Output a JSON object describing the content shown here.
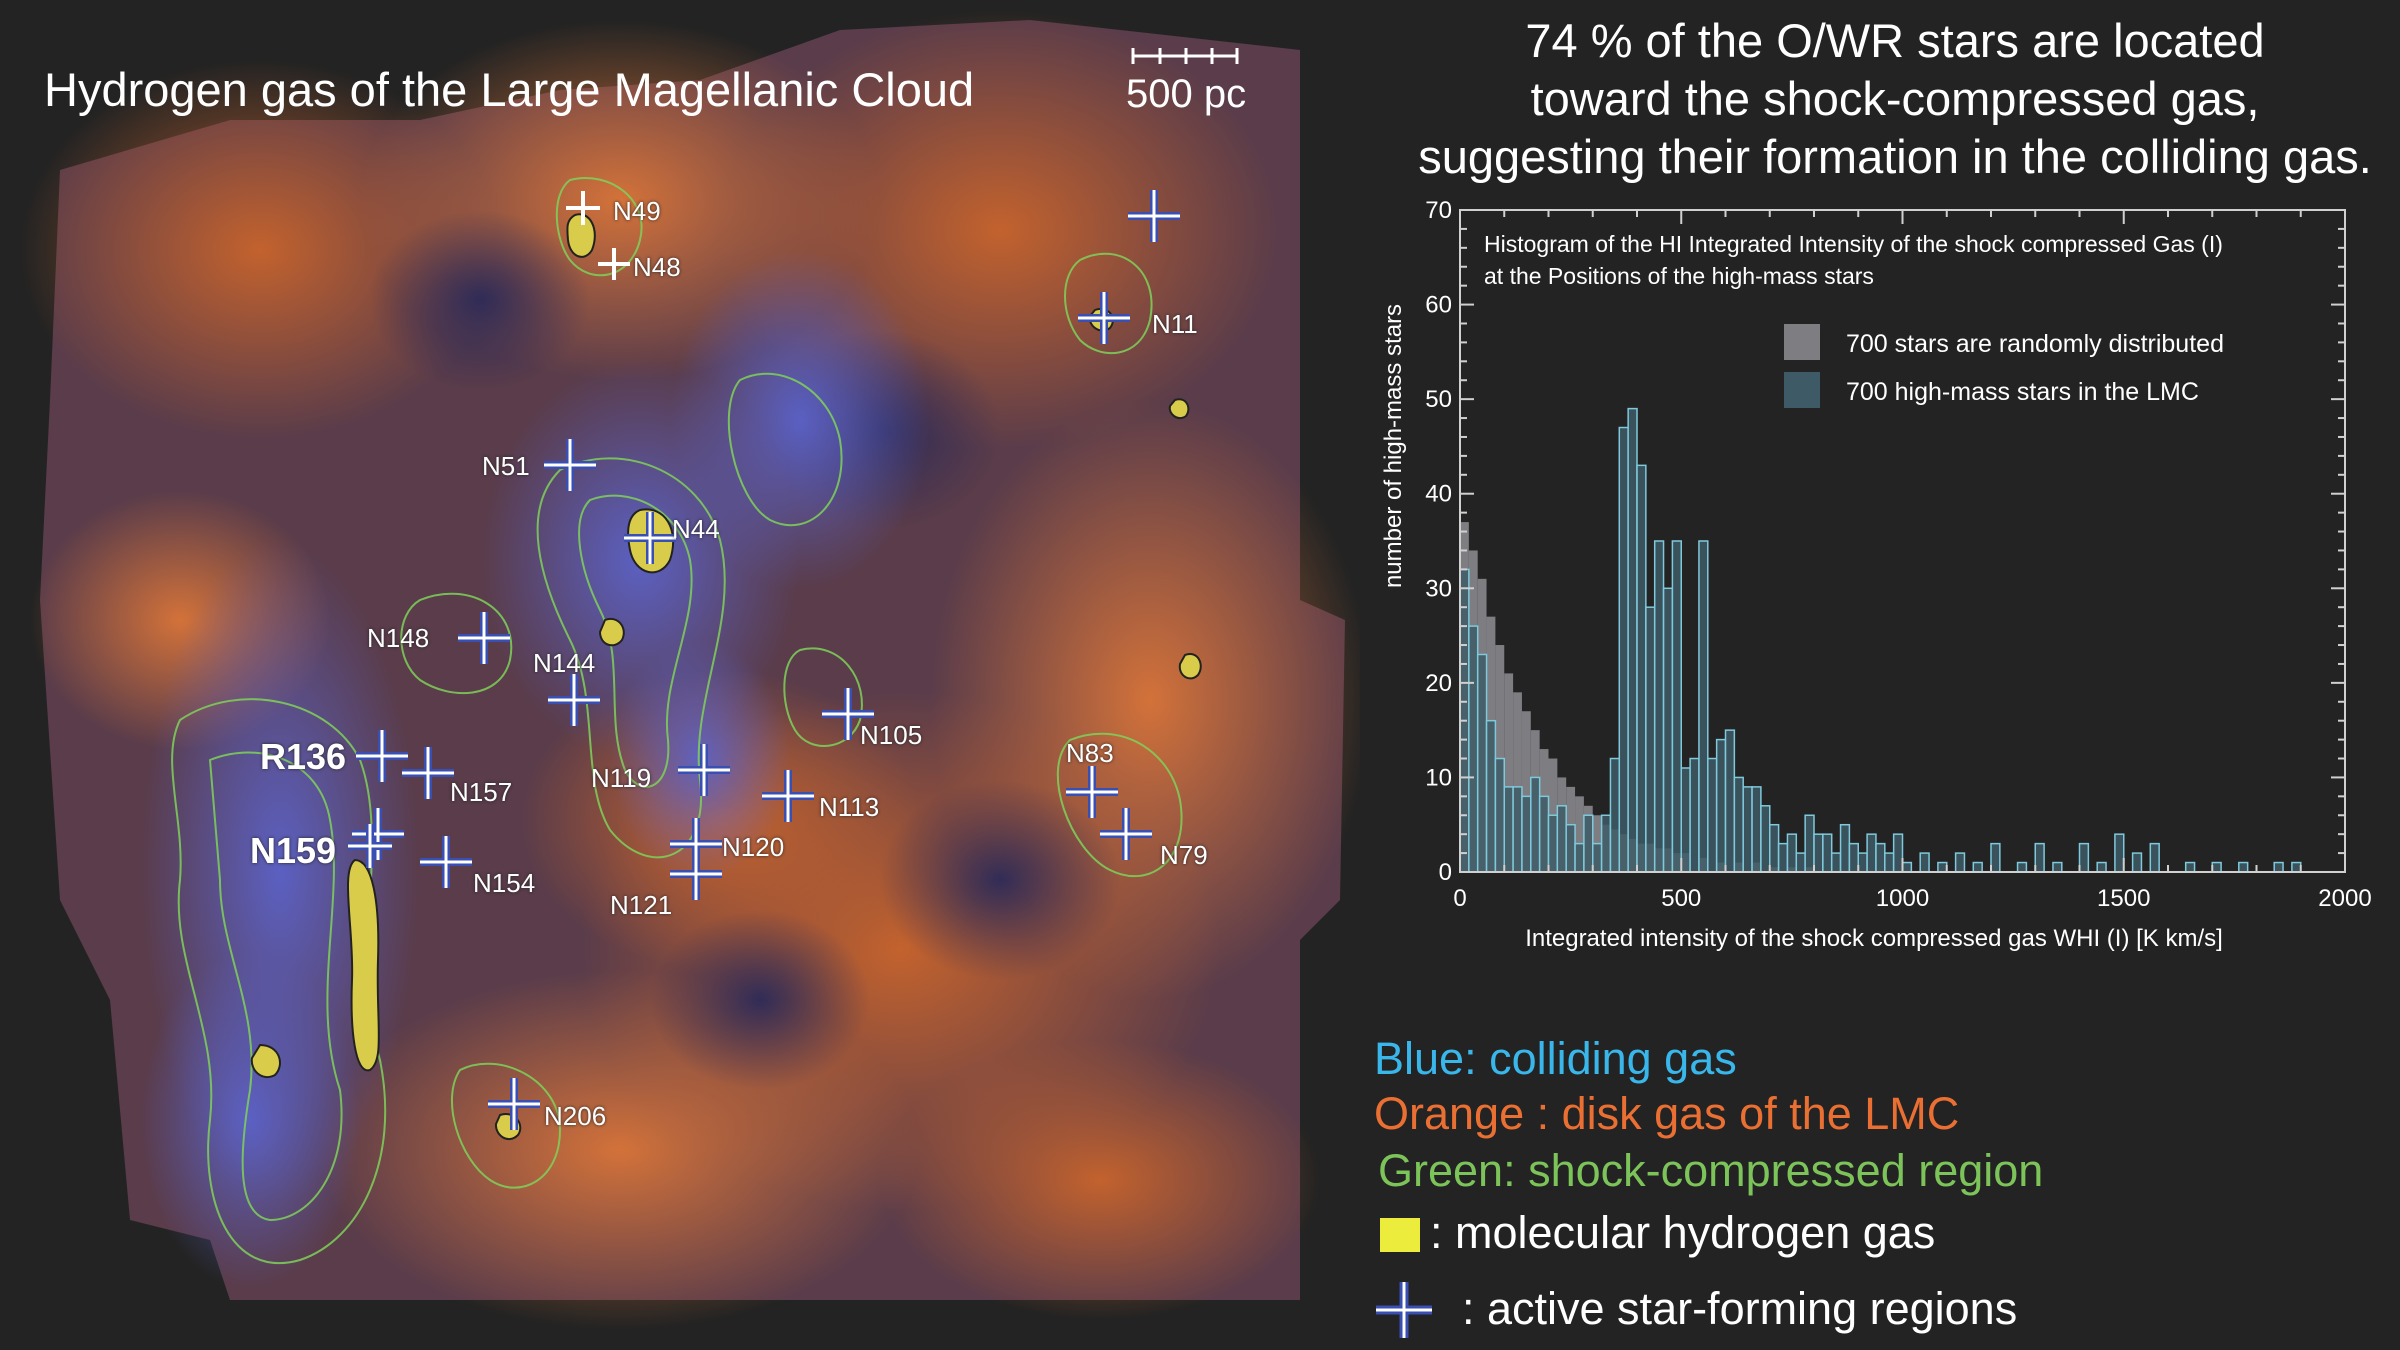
{
  "map": {
    "title": "Hydrogen gas of the Large Magellanic Cloud",
    "scale_label": "500 pc",
    "regions": [
      {
        "label": "N49",
        "big": false
      },
      {
        "label": "N48",
        "big": false
      },
      {
        "label": "N11",
        "big": false
      },
      {
        "label": "N51",
        "big": false
      },
      {
        "label": "N44",
        "big": false
      },
      {
        "label": "N148",
        "big": false
      },
      {
        "label": "N144",
        "big": false
      },
      {
        "label": "N105",
        "big": false
      },
      {
        "label": "R136",
        "big": true
      },
      {
        "label": "N157",
        "big": false
      },
      {
        "label": "N119",
        "big": false
      },
      {
        "label": "N113",
        "big": false
      },
      {
        "label": "N83",
        "big": false
      },
      {
        "label": "N79",
        "big": false
      },
      {
        "label": "N159",
        "big": true
      },
      {
        "label": "N154",
        "big": false
      },
      {
        "label": "N120",
        "big": false
      },
      {
        "label": "N121",
        "big": false
      },
      {
        "label": "N206",
        "big": false
      }
    ]
  },
  "headline": {
    "lines": [
      "74 % of the O/WR stars are located",
      "toward the shock-compressed gas,",
      "suggesting their formation in the colliding gas."
    ]
  },
  "chart_data": {
    "type": "bar",
    "title_lines": [
      "Histogram of the HI Integrated Intensity of the shock compressed Gas (I)",
      "at the Positions of the high-mass stars"
    ],
    "xlabel": "Integrated intensity of the shock compressed gas WHI (I) [K km/s]",
    "ylabel": "number of high-mass stars",
    "xlim": [
      0,
      2000
    ],
    "ylim": [
      0,
      70
    ],
    "xticks": [
      0,
      500,
      1000,
      1500,
      2000
    ],
    "yticks": [
      0,
      10,
      20,
      30,
      40,
      50,
      60,
      70
    ],
    "bin_width": 20,
    "grid": false,
    "legend_position": "top-center",
    "series": [
      {
        "name": "700 stars are randomly distributed",
        "color": "#7d7d82",
        "bin_starts": [
          0,
          20,
          40,
          60,
          80,
          100,
          120,
          140,
          160,
          180,
          200,
          220,
          240,
          260,
          280,
          300,
          320,
          340,
          360,
          380,
          400,
          420,
          440,
          460,
          480,
          500,
          540,
          580,
          620,
          660,
          700,
          740,
          780
        ],
        "values": [
          37,
          34,
          31,
          27,
          24,
          21,
          19,
          17,
          15,
          13,
          12,
          10,
          9,
          8,
          7,
          6,
          5,
          4.5,
          4,
          3.5,
          3,
          3,
          2.5,
          2.5,
          2,
          2,
          1.5,
          1,
          1,
          1,
          0.5,
          0.5,
          0.5
        ]
      },
      {
        "name": "700 high-mass stars in the LMC",
        "color": "#3d5a66",
        "stroke": "#7fc9dc",
        "bin_starts": [
          0,
          20,
          40,
          60,
          80,
          100,
          120,
          140,
          160,
          180,
          200,
          220,
          240,
          260,
          280,
          300,
          320,
          340,
          360,
          380,
          400,
          420,
          440,
          460,
          480,
          500,
          520,
          540,
          560,
          580,
          600,
          620,
          640,
          660,
          680,
          700,
          720,
          740,
          760,
          780,
          800,
          820,
          840,
          860,
          880,
          900,
          920,
          940,
          960,
          980,
          1000,
          1040,
          1080,
          1120,
          1160,
          1200,
          1260,
          1300,
          1340,
          1400,
          1440,
          1480,
          1520,
          1560,
          1640,
          1700,
          1760,
          1840,
          1880
        ],
        "values": [
          32,
          26,
          23,
          16,
          12,
          9,
          9,
          8,
          10,
          8,
          6,
          7,
          5,
          3,
          6,
          3,
          6,
          12,
          47,
          49,
          43,
          28,
          35,
          30,
          35,
          11,
          12,
          35,
          12,
          14,
          15,
          10,
          9,
          9,
          7,
          5,
          3,
          4,
          2,
          6,
          4,
          4,
          2,
          5,
          3,
          2,
          4,
          3,
          2,
          4,
          1,
          2,
          1,
          2,
          1,
          3,
          1,
          3,
          1,
          3,
          1,
          4,
          2,
          3,
          1,
          1,
          1,
          1,
          1
        ]
      }
    ]
  },
  "legend": {
    "blue": "Blue: colliding gas",
    "orange": "Orange : disk gas of the LMC",
    "green": "Green: shock-compressed region",
    "yellow": ": molecular hydrogen gas",
    "cross": ": active star-forming regions"
  }
}
